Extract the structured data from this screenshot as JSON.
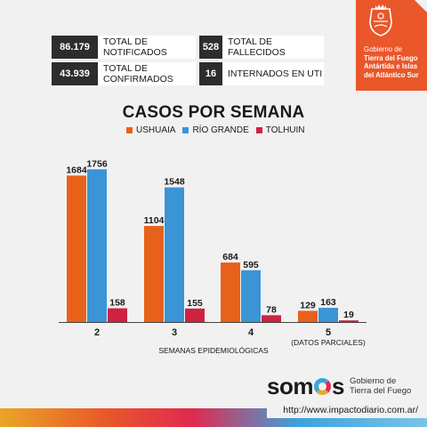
{
  "stats": [
    {
      "value": "86.179",
      "label": "TOTAL DE NOTIFICADOS"
    },
    {
      "value": "528",
      "label": "TOTAL DE FALLECIDOS"
    },
    {
      "value": "43.939",
      "label": "TOTAL DE CONFIRMADOS"
    },
    {
      "value": "16",
      "label": "INTERNADOS EN UTI"
    }
  ],
  "government": {
    "line1": "Gobierno de",
    "line2": "Tierra del Fuego",
    "line3": "Antártida e Islas",
    "line4": "del Atlántico Sur",
    "crest_icon": "coat-of-arms-icon"
  },
  "colors": {
    "ushuaia": "#e8611a",
    "rio_grande": "#3a94d6",
    "tolhuin": "#cf2241",
    "badge": "#e9572a"
  },
  "chart_data": {
    "type": "bar",
    "title": "CASOS POR SEMANA",
    "xlabel": "SEMANAS EPIDEMIOLÓGICAS",
    "ylabel": "",
    "categories": [
      "2",
      "3",
      "4",
      "5"
    ],
    "category_sublabels": [
      "",
      "",
      "",
      "(DATOS PARCIALES)"
    ],
    "series": [
      {
        "name": "USHUAIA",
        "values": [
          1684,
          1104,
          684,
          129
        ]
      },
      {
        "name": "RÍO GRANDE",
        "values": [
          1756,
          1548,
          595,
          163
        ]
      },
      {
        "name": "TOLHUIN",
        "values": [
          158,
          155,
          78,
          19
        ]
      }
    ],
    "ylim": [
      0,
      1800
    ],
    "grid": false,
    "legend": "top"
  },
  "footer": {
    "brand_prefix": "som",
    "brand_suffix": "s",
    "brand_sub1": "Gobierno de",
    "brand_sub2": "Tierra del Fuego",
    "url": "http://www.impactodiario.com.ar/"
  }
}
